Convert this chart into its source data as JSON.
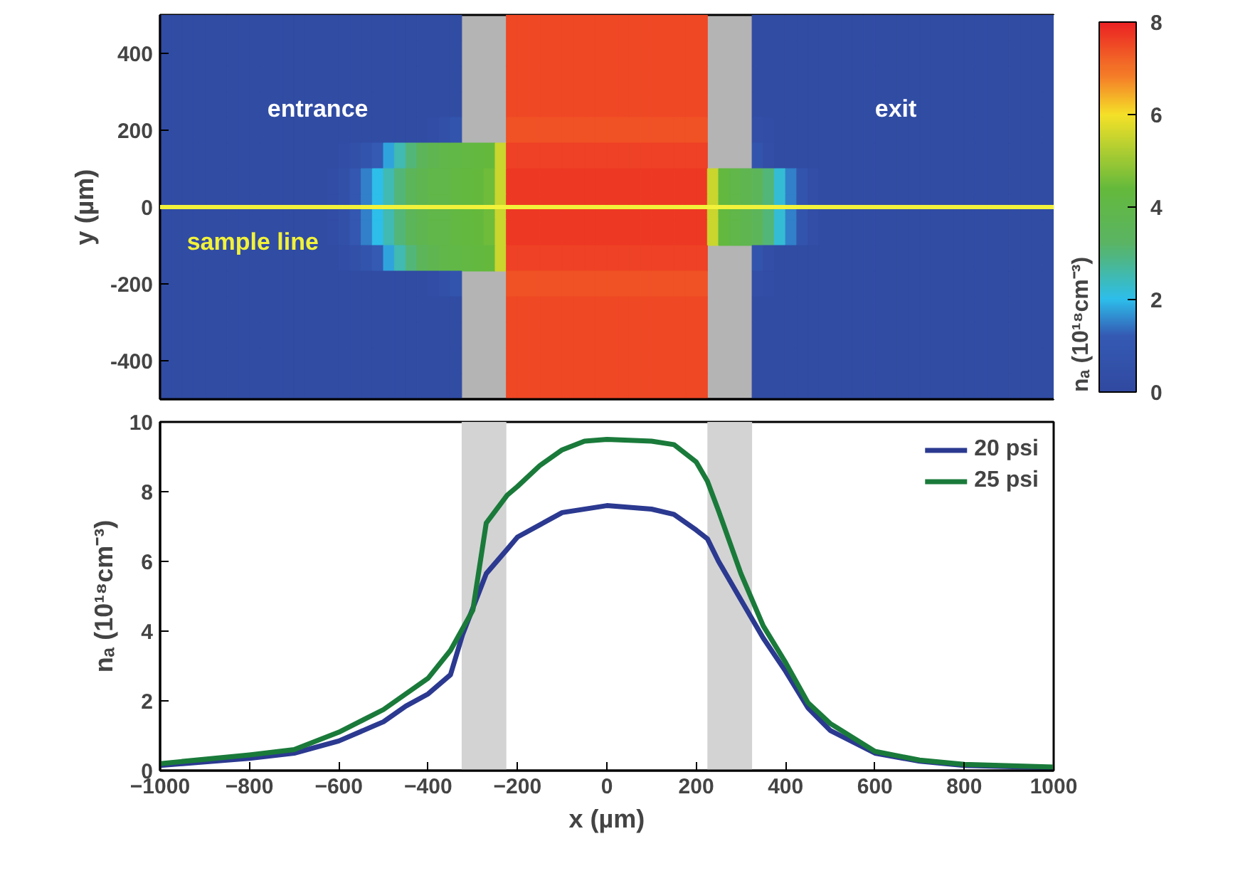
{
  "chart_data": [
    {
      "type": "heatmap",
      "ylabel": "y (µm)",
      "clabel": "nₐ (10¹⁸cm⁻³)",
      "clim": [
        0,
        8
      ],
      "cticks": [
        0,
        2,
        4,
        6,
        8
      ],
      "categories": [
        null,
        null,
        null,
        null,
        null,
        null,
        null,
        null,
        null,
        null,
        null,
        null,
        null,
        null,
        null,
        null,
        null,
        null,
        null,
        null,
        null,
        null,
        null,
        null,
        null,
        null,
        null,
        null,
        null,
        null,
        null,
        null,
        null,
        null,
        null,
        null,
        null,
        null,
        null,
        null,
        null,
        null,
        null,
        null,
        null,
        null,
        null,
        null,
        null,
        null,
        null,
        null,
        null,
        null,
        null,
        null,
        null,
        null,
        null,
        null,
        null,
        null,
        null,
        null,
        null,
        null,
        null,
        null,
        null,
        null,
        null,
        null,
        null,
        null,
        null,
        null,
        null,
        null,
        null,
        null
      ],
      "y_categories": [
        null,
        "400",
        null,
        null,
        "200",
        null,
        null,
        "0",
        null,
        null,
        "-200",
        null,
        null,
        "-400",
        null
      ],
      "cells": [
        [
          0.2,
          0.2,
          0.2,
          0.2,
          0.2,
          0.2,
          0.2,
          0.2,
          0.2,
          0.2,
          0.2,
          0.2,
          0.2,
          0.2,
          0.2,
          0.2,
          0.2,
          0.2,
          0.2,
          0.2,
          0.2,
          0.2,
          0.2,
          0.2,
          0.2,
          0.2,
          0.2,
          null,
          null,
          null,
          null,
          7.5,
          7.5,
          7.5,
          7.5,
          7.5,
          7.5,
          7.5,
          7.5,
          7.5,
          7.5,
          7.5,
          7.5,
          7.5,
          7.5,
          7.5,
          7.5,
          7.5,
          7.5,
          null,
          null,
          null,
          null,
          0.2,
          0.2,
          0.2,
          0.2,
          0.2,
          0.2,
          0.2,
          0.2,
          0.2,
          0.2,
          0.2,
          0.2,
          0.2,
          0.2,
          0.2,
          0.2,
          0.2,
          0.2,
          0.2,
          0.2,
          0.2,
          0.2,
          0.2,
          0.2,
          0.2,
          0.2,
          0.2
        ],
        [
          0.2,
          0.2,
          0.2,
          0.2,
          0.2,
          0.2,
          0.2,
          0.2,
          0.2,
          0.2,
          0.2,
          0.2,
          0.2,
          0.2,
          0.2,
          0.2,
          0.2,
          0.2,
          0.2,
          0.2,
          0.2,
          0.2,
          0.2,
          0.2,
          0.2,
          0.2,
          0.2,
          null,
          null,
          null,
          null,
          7.5,
          7.5,
          7.5,
          7.5,
          7.5,
          7.5,
          7.5,
          7.5,
          7.5,
          7.5,
          7.5,
          7.5,
          7.5,
          7.5,
          7.5,
          7.5,
          7.5,
          7.5,
          null,
          null,
          null,
          null,
          0.2,
          0.2,
          0.2,
          0.2,
          0.2,
          0.2,
          0.2,
          0.2,
          0.2,
          0.2,
          0.2,
          0.2,
          0.2,
          0.2,
          0.2,
          0.2,
          0.2,
          0.2,
          0.2,
          0.2,
          0.2,
          0.2,
          0.2,
          0.2,
          0.2,
          0.2,
          0.2
        ],
        [
          0.2,
          0.2,
          0.2,
          0.2,
          0.2,
          0.2,
          0.2,
          0.2,
          0.2,
          0.2,
          0.2,
          0.2,
          0.2,
          0.2,
          0.2,
          0.2,
          0.2,
          0.2,
          0.2,
          0.2,
          0.2,
          0.2,
          0.2,
          0.2,
          0.2,
          0.2,
          0.2,
          null,
          null,
          null,
          null,
          7.5,
          7.5,
          7.5,
          7.5,
          7.5,
          7.5,
          7.5,
          7.5,
          7.5,
          7.5,
          7.5,
          7.5,
          7.5,
          7.5,
          7.5,
          7.5,
          7.5,
          7.5,
          null,
          null,
          null,
          null,
          0.2,
          0.2,
          0.2,
          0.2,
          0.2,
          0.2,
          0.2,
          0.2,
          0.2,
          0.2,
          0.2,
          0.2,
          0.2,
          0.2,
          0.2,
          0.2,
          0.2,
          0.2,
          0.2,
          0.2,
          0.2,
          0.2,
          0.2,
          0.2,
          0.2,
          0.2,
          0.2
        ],
        [
          0.2,
          0.2,
          0.2,
          0.2,
          0.2,
          0.2,
          0.2,
          0.2,
          0.2,
          0.2,
          0.2,
          0.2,
          0.2,
          0.2,
          0.2,
          0.2,
          0.2,
          0.2,
          0.2,
          0.2,
          0.2,
          0.2,
          0.2,
          0.2,
          0.2,
          0.2,
          0.2,
          null,
          null,
          null,
          null,
          7.5,
          7.5,
          7.5,
          7.5,
          7.5,
          7.5,
          7.5,
          7.5,
          7.5,
          7.5,
          7.5,
          7.5,
          7.5,
          7.5,
          7.5,
          7.5,
          7.5,
          7.5,
          null,
          null,
          null,
          null,
          0.2,
          0.2,
          0.2,
          0.2,
          0.2,
          0.2,
          0.2,
          0.2,
          0.2,
          0.2,
          0.2,
          0.2,
          0.2,
          0.2,
          0.2,
          0.2,
          0.2,
          0.2,
          0.2,
          0.2,
          0.2,
          0.2,
          0.2,
          0.2,
          0.2,
          0.2,
          0.2
        ],
        [
          0.2,
          0.2,
          0.2,
          0.2,
          0.2,
          0.2,
          0.2,
          0.2,
          0.2,
          0.2,
          0.2,
          0.2,
          0.2,
          0.2,
          0.2,
          0.2,
          0.2,
          0.2,
          0.2,
          0.2,
          0.2,
          0.2,
          0.2,
          0.2,
          0.3,
          0.5,
          0.8,
          null,
          null,
          null,
          null,
          7.4,
          7.4,
          7.4,
          7.4,
          7.4,
          7.4,
          7.4,
          7.4,
          7.4,
          7.4,
          7.4,
          7.4,
          7.4,
          7.4,
          7.4,
          7.4,
          7.4,
          7.4,
          null,
          null,
          null,
          null,
          0.4,
          0.3,
          0.2,
          0.2,
          0.2,
          0.2,
          0.2,
          0.2,
          0.2,
          0.2,
          0.2,
          0.2,
          0.2,
          0.2,
          0.2,
          0.2,
          0.2,
          0.2,
          0.2,
          0.2,
          0.2,
          0.2,
          0.2,
          0.2,
          0.2,
          0.2,
          0.2
        ],
        [
          0.2,
          0.2,
          0.2,
          0.2,
          0.2,
          0.2,
          0.2,
          0.2,
          0.2,
          0.2,
          0.2,
          0.2,
          0.2,
          0.2,
          0.2,
          0.2,
          0.3,
          0.5,
          0.8,
          1.2,
          1.8,
          2.5,
          3,
          3.5,
          3.8,
          4,
          4.1,
          4.2,
          4.3,
          4.4,
          5.5,
          7.6,
          7.6,
          7.6,
          7.6,
          7.6,
          7.6,
          7.6,
          7.6,
          7.6,
          7.6,
          7.6,
          7.6,
          7.6,
          7.6,
          7.6,
          7.6,
          7.6,
          7.6,
          null,
          null,
          null,
          null,
          0.8,
          0.4,
          0.2,
          0.2,
          0.2,
          0.2,
          0.2,
          0.2,
          0.2,
          0.2,
          0.2,
          0.2,
          0.2,
          0.2,
          0.2,
          0.2,
          0.2,
          0.2,
          0.2,
          0.2,
          0.2,
          0.2,
          0.2,
          0.2,
          0.2,
          0.2,
          0.2
        ],
        [
          0.2,
          0.2,
          0.2,
          0.2,
          0.2,
          0.2,
          0.2,
          0.2,
          0.2,
          0.2,
          0.2,
          0.2,
          0.2,
          0.2,
          0.2,
          0.3,
          0.5,
          1,
          1.5,
          2,
          2.5,
          3,
          3.5,
          3.8,
          4,
          4,
          4.2,
          4.3,
          4.4,
          4.5,
          5.5,
          7.7,
          7.7,
          7.7,
          7.7,
          7.7,
          7.7,
          7.7,
          7.7,
          7.7,
          7.7,
          7.7,
          7.7,
          7.7,
          7.7,
          7.7,
          7.7,
          7.7,
          7.7,
          5.5,
          4.3,
          4,
          3.8,
          3.5,
          3,
          2.2,
          1.5,
          0.8,
          0.4,
          0.2,
          0.2,
          0.2,
          0.2,
          0.2,
          0.2,
          0.2,
          0.2,
          0.2,
          0.2,
          0.2,
          0.2,
          0.2,
          0.2,
          0.2,
          0.2,
          0.2,
          0.2,
          0.2,
          0.2,
          0.2
        ],
        [
          0.2,
          0.2,
          0.2,
          0.2,
          0.2,
          0.2,
          0.2,
          0.2,
          0.2,
          0.2,
          0.2,
          0.2,
          0.2,
          0.2,
          0.2,
          0.3,
          0.5,
          1,
          1.5,
          2,
          2.5,
          3,
          3.5,
          3.8,
          4,
          4,
          4.2,
          4.3,
          4.4,
          4.5,
          5.5,
          7.7,
          7.7,
          7.7,
          7.7,
          7.7,
          7.7,
          7.7,
          7.7,
          7.7,
          7.7,
          7.7,
          7.7,
          7.7,
          7.7,
          7.7,
          7.7,
          7.7,
          7.7,
          5.5,
          4.3,
          4,
          3.8,
          3.5,
          3,
          2.2,
          1.5,
          0.8,
          0.4,
          0.2,
          0.2,
          0.2,
          0.2,
          0.2,
          0.2,
          0.2,
          0.2,
          0.2,
          0.2,
          0.2,
          0.2,
          0.2,
          0.2,
          0.2,
          0.2,
          0.2,
          0.2,
          0.2,
          0.2,
          0.2
        ],
        [
          0.2,
          0.2,
          0.2,
          0.2,
          0.2,
          0.2,
          0.2,
          0.2,
          0.2,
          0.2,
          0.2,
          0.2,
          0.2,
          0.2,
          0.2,
          0.3,
          0.5,
          1,
          1.5,
          2,
          2.5,
          3,
          3.5,
          3.8,
          4,
          4,
          4.2,
          4.3,
          4.4,
          4.5,
          5.5,
          7.7,
          7.7,
          7.7,
          7.7,
          7.7,
          7.7,
          7.7,
          7.7,
          7.7,
          7.7,
          7.7,
          7.7,
          7.7,
          7.7,
          7.7,
          7.7,
          7.7,
          7.7,
          5.5,
          4.3,
          4,
          3.8,
          3.5,
          3,
          2.2,
          1.5,
          0.8,
          0.4,
          0.2,
          0.2,
          0.2,
          0.2,
          0.2,
          0.2,
          0.2,
          0.2,
          0.2,
          0.2,
          0.2,
          0.2,
          0.2,
          0.2,
          0.2,
          0.2,
          0.2,
          0.2,
          0.2,
          0.2,
          0.2
        ],
        [
          0.2,
          0.2,
          0.2,
          0.2,
          0.2,
          0.2,
          0.2,
          0.2,
          0.2,
          0.2,
          0.2,
          0.2,
          0.2,
          0.2,
          0.2,
          0.2,
          0.3,
          0.5,
          0.8,
          1.2,
          1.8,
          2.5,
          3,
          3.5,
          3.8,
          4,
          4.1,
          4.2,
          4.3,
          4.4,
          5.5,
          7.6,
          7.6,
          7.6,
          7.6,
          7.6,
          7.6,
          7.6,
          7.6,
          7.6,
          7.6,
          7.6,
          7.6,
          7.6,
          7.6,
          7.6,
          7.6,
          7.6,
          7.6,
          null,
          null,
          null,
          null,
          0.8,
          0.4,
          0.2,
          0.2,
          0.2,
          0.2,
          0.2,
          0.2,
          0.2,
          0.2,
          0.2,
          0.2,
          0.2,
          0.2,
          0.2,
          0.2,
          0.2,
          0.2,
          0.2,
          0.2,
          0.2,
          0.2,
          0.2,
          0.2,
          0.2,
          0.2,
          0.2
        ],
        [
          0.2,
          0.2,
          0.2,
          0.2,
          0.2,
          0.2,
          0.2,
          0.2,
          0.2,
          0.2,
          0.2,
          0.2,
          0.2,
          0.2,
          0.2,
          0.2,
          0.2,
          0.2,
          0.2,
          0.2,
          0.2,
          0.2,
          0.2,
          0.2,
          0.3,
          0.5,
          0.8,
          null,
          null,
          null,
          null,
          7.4,
          7.4,
          7.4,
          7.4,
          7.4,
          7.4,
          7.4,
          7.4,
          7.4,
          7.4,
          7.4,
          7.4,
          7.4,
          7.4,
          7.4,
          7.4,
          7.4,
          7.4,
          null,
          null,
          null,
          null,
          0.4,
          0.3,
          0.2,
          0.2,
          0.2,
          0.2,
          0.2,
          0.2,
          0.2,
          0.2,
          0.2,
          0.2,
          0.2,
          0.2,
          0.2,
          0.2,
          0.2,
          0.2,
          0.2,
          0.2,
          0.2,
          0.2,
          0.2,
          0.2,
          0.2,
          0.2,
          0.2
        ],
        [
          0.2,
          0.2,
          0.2,
          0.2,
          0.2,
          0.2,
          0.2,
          0.2,
          0.2,
          0.2,
          0.2,
          0.2,
          0.2,
          0.2,
          0.2,
          0.2,
          0.2,
          0.2,
          0.2,
          0.2,
          0.2,
          0.2,
          0.2,
          0.2,
          0.2,
          0.2,
          0.2,
          null,
          null,
          null,
          null,
          7.5,
          7.5,
          7.5,
          7.5,
          7.5,
          7.5,
          7.5,
          7.5,
          7.5,
          7.5,
          7.5,
          7.5,
          7.5,
          7.5,
          7.5,
          7.5,
          7.5,
          7.5,
          null,
          null,
          null,
          null,
          0.2,
          0.2,
          0.2,
          0.2,
          0.2,
          0.2,
          0.2,
          0.2,
          0.2,
          0.2,
          0.2,
          0.2,
          0.2,
          0.2,
          0.2,
          0.2,
          0.2,
          0.2,
          0.2,
          0.2,
          0.2,
          0.2,
          0.2,
          0.2,
          0.2,
          0.2,
          0.2
        ],
        [
          0.2,
          0.2,
          0.2,
          0.2,
          0.2,
          0.2,
          0.2,
          0.2,
          0.2,
          0.2,
          0.2,
          0.2,
          0.2,
          0.2,
          0.2,
          0.2,
          0.2,
          0.2,
          0.2,
          0.2,
          0.2,
          0.2,
          0.2,
          0.2,
          0.2,
          0.2,
          0.2,
          null,
          null,
          null,
          null,
          7.5,
          7.5,
          7.5,
          7.5,
          7.5,
          7.5,
          7.5,
          7.5,
          7.5,
          7.5,
          7.5,
          7.5,
          7.5,
          7.5,
          7.5,
          7.5,
          7.5,
          7.5,
          null,
          null,
          null,
          null,
          0.2,
          0.2,
          0.2,
          0.2,
          0.2,
          0.2,
          0.2,
          0.2,
          0.2,
          0.2,
          0.2,
          0.2,
          0.2,
          0.2,
          0.2,
          0.2,
          0.2,
          0.2,
          0.2,
          0.2,
          0.2,
          0.2,
          0.2,
          0.2,
          0.2,
          0.2,
          0.2
        ],
        [
          0.2,
          0.2,
          0.2,
          0.2,
          0.2,
          0.2,
          0.2,
          0.2,
          0.2,
          0.2,
          0.2,
          0.2,
          0.2,
          0.2,
          0.2,
          0.2,
          0.2,
          0.2,
          0.2,
          0.2,
          0.2,
          0.2,
          0.2,
          0.2,
          0.2,
          0.2,
          0.2,
          null,
          null,
          null,
          null,
          7.5,
          7.5,
          7.5,
          7.5,
          7.5,
          7.5,
          7.5,
          7.5,
          7.5,
          7.5,
          7.5,
          7.5,
          7.5,
          7.5,
          7.5,
          7.5,
          7.5,
          7.5,
          null,
          null,
          null,
          null,
          0.2,
          0.2,
          0.2,
          0.2,
          0.2,
          0.2,
          0.2,
          0.2,
          0.2,
          0.2,
          0.2,
          0.2,
          0.2,
          0.2,
          0.2,
          0.2,
          0.2,
          0.2,
          0.2,
          0.2,
          0.2,
          0.2,
          0.2,
          0.2,
          0.2,
          0.2,
          0.2
        ],
        [
          0.2,
          0.2,
          0.2,
          0.2,
          0.2,
          0.2,
          0.2,
          0.2,
          0.2,
          0.2,
          0.2,
          0.2,
          0.2,
          0.2,
          0.2,
          0.2,
          0.2,
          0.2,
          0.2,
          0.2,
          0.2,
          0.2,
          0.2,
          0.2,
          0.2,
          0.2,
          0.2,
          null,
          null,
          null,
          null,
          7.5,
          7.5,
          7.5,
          7.5,
          7.5,
          7.5,
          7.5,
          7.5,
          7.5,
          7.5,
          7.5,
          7.5,
          7.5,
          7.5,
          7.5,
          7.5,
          7.5,
          7.5,
          null,
          null,
          null,
          null,
          0.2,
          0.2,
          0.2,
          0.2,
          0.2,
          0.2,
          0.2,
          0.2,
          0.2,
          0.2,
          0.2,
          0.2,
          0.2,
          0.2,
          0.2,
          0.2,
          0.2,
          0.2,
          0.2,
          0.2,
          0.2,
          0.2,
          0.2,
          0.2,
          0.2,
          0.2,
          0.2
        ]
      ],
      "ref_lines": [
        {
          "axis": "y",
          "value": "0",
          "label": "sample line",
          "color": "#f2f23a"
        }
      ],
      "annotations": [
        "entrance",
        "exit"
      ]
    },
    {
      "type": "line",
      "xlabel": "x (µm)",
      "ylabel": "nₐ (10¹⁸cm⁻³)",
      "xlim": [
        -1000,
        1000
      ],
      "xticks": [
        -1000,
        -800,
        -600,
        -400,
        -200,
        0,
        200,
        400,
        600,
        800,
        1000
      ],
      "ylim": [
        0,
        10
      ],
      "yticks": [
        0,
        2,
        4,
        6,
        8,
        10
      ],
      "grid": false,
      "legend": "top right",
      "bands": [
        {
          "axis": "x",
          "from": -325,
          "to": -225,
          "color": "#d3d3d3"
        },
        {
          "axis": "x",
          "from": 225,
          "to": 325,
          "color": "#d3d3d3"
        }
      ],
      "series": [
        {
          "name": "20 psi",
          "color": "#2b3990",
          "x": [
            -1000,
            -800,
            -700,
            -600,
            -500,
            -450,
            -400,
            -350,
            -323,
            -270,
            -223,
            -200,
            -100,
            0,
            100,
            150,
            200,
            225,
            250,
            300,
            350,
            400,
            450,
            500,
            600,
            700,
            800,
            1000
          ],
          "values": [
            0.15,
            0.35,
            0.5,
            0.85,
            1.4,
            1.85,
            2.2,
            2.75,
            3.9,
            5.65,
            6.35,
            6.7,
            7.4,
            7.6,
            7.5,
            7.35,
            6.9,
            6.65,
            6.0,
            4.9,
            3.8,
            2.85,
            1.8,
            1.15,
            0.5,
            0.27,
            0.15,
            0.08
          ]
        },
        {
          "name": "25 psi",
          "color": "#1a7a3a",
          "x": [
            -1000,
            -800,
            -700,
            -600,
            -500,
            -400,
            -350,
            -300,
            -270,
            -223,
            -200,
            -150,
            -100,
            -50,
            0,
            100,
            150,
            200,
            225,
            250,
            300,
            350,
            400,
            450,
            500,
            600,
            700,
            800,
            1000
          ],
          "values": [
            0.2,
            0.45,
            0.6,
            1.1,
            1.75,
            2.65,
            3.45,
            4.6,
            7.1,
            7.9,
            8.15,
            8.75,
            9.2,
            9.45,
            9.5,
            9.45,
            9.35,
            8.85,
            8.3,
            7.45,
            5.65,
            4.15,
            3.1,
            1.95,
            1.35,
            0.55,
            0.3,
            0.18,
            0.1
          ]
        }
      ]
    }
  ]
}
